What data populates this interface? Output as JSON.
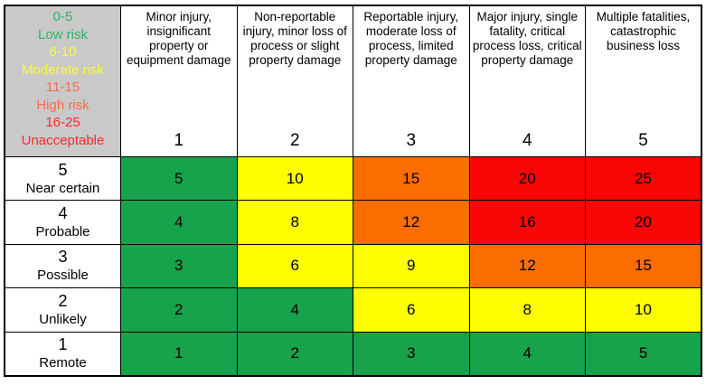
{
  "colors": {
    "low": "#17A24C",
    "moderate": "#FFFF00",
    "high": "#FB6D00",
    "unacceptable": "#FA0505",
    "legend_bg": "#C9C9C9",
    "legend_text_low": "#2EB363",
    "legend_text_moderate": "#FCFC3C",
    "legend_text_high": "#FD6A45",
    "legend_text_unacceptable": "#FB2A24",
    "border": "#000000"
  },
  "legend": {
    "lines": [
      {
        "text": "0-5",
        "color": "low"
      },
      {
        "text": "Low risk",
        "color": "low"
      },
      {
        "text": "6-10",
        "color": "moderate"
      },
      {
        "text": "Moderate risk",
        "color": "moderate"
      },
      {
        "text": "11-15",
        "color": "high"
      },
      {
        "text": "High risk",
        "color": "high"
      },
      {
        "text": "16-25",
        "color": "unacceptable"
      },
      {
        "text": "Unacceptable",
        "color": "unacceptable"
      }
    ]
  },
  "columns": [
    {
      "description": "Minor injury, insignificant property or equipment damage",
      "number": "1"
    },
    {
      "description": "Non-reportable injury, minor loss of process or slight property damage",
      "number": "2"
    },
    {
      "description": "Reportable injury, moderate loss of process, limited property damage",
      "number": "3"
    },
    {
      "description": "Major injury, single fatality, critical process loss, critical property damage",
      "number": "4"
    },
    {
      "description": "Multiple fatalities, catastrophic business loss",
      "number": "5"
    }
  ],
  "rows": [
    {
      "number": "5",
      "label": "Near certain",
      "cells": [
        {
          "value": "5",
          "level": "low"
        },
        {
          "value": "10",
          "level": "moderate"
        },
        {
          "value": "15",
          "level": "high"
        },
        {
          "value": "20",
          "level": "unacceptable"
        },
        {
          "value": "25",
          "level": "unacceptable"
        }
      ]
    },
    {
      "number": "4",
      "label": "Probable",
      "cells": [
        {
          "value": "4",
          "level": "low"
        },
        {
          "value": "8",
          "level": "moderate"
        },
        {
          "value": "12",
          "level": "high"
        },
        {
          "value": "16",
          "level": "unacceptable"
        },
        {
          "value": "20",
          "level": "unacceptable"
        }
      ]
    },
    {
      "number": "3",
      "label": "Possible",
      "cells": [
        {
          "value": "3",
          "level": "low"
        },
        {
          "value": "6",
          "level": "moderate"
        },
        {
          "value": "9",
          "level": "moderate"
        },
        {
          "value": "12",
          "level": "high"
        },
        {
          "value": "15",
          "level": "high"
        }
      ]
    },
    {
      "number": "2",
      "label": "Unlikely",
      "cells": [
        {
          "value": "2",
          "level": "low"
        },
        {
          "value": "4",
          "level": "low"
        },
        {
          "value": "6",
          "level": "moderate"
        },
        {
          "value": "8",
          "level": "moderate"
        },
        {
          "value": "10",
          "level": "moderate"
        }
      ]
    },
    {
      "number": "1",
      "label": "Remote",
      "cells": [
        {
          "value": "1",
          "level": "low"
        },
        {
          "value": "2",
          "level": "low"
        },
        {
          "value": "3",
          "level": "low"
        },
        {
          "value": "4",
          "level": "low"
        },
        {
          "value": "5",
          "level": "low"
        }
      ]
    }
  ],
  "chart_data": {
    "type": "heatmap",
    "x_categories": [
      "1",
      "2",
      "3",
      "4",
      "5"
    ],
    "x_category_descriptions": [
      "Minor injury, insignificant property or equipment damage",
      "Non-reportable injury, minor loss of process or slight property damage",
      "Reportable injury, moderate loss of process, limited property damage",
      "Major injury, single fatality, critical process loss, critical property damage",
      "Multiple fatalities, catastrophic business loss"
    ],
    "y_categories": [
      "5 Near certain",
      "4 Probable",
      "3 Possible",
      "2 Unlikely",
      "1 Remote"
    ],
    "values": [
      [
        5,
        10,
        15,
        20,
        25
      ],
      [
        4,
        8,
        12,
        16,
        20
      ],
      [
        3,
        6,
        9,
        12,
        15
      ],
      [
        2,
        4,
        6,
        8,
        10
      ],
      [
        1,
        2,
        3,
        4,
        5
      ]
    ],
    "levels": [
      [
        "low",
        "moderate",
        "high",
        "unacceptable",
        "unacceptable"
      ],
      [
        "low",
        "moderate",
        "high",
        "unacceptable",
        "unacceptable"
      ],
      [
        "low",
        "moderate",
        "moderate",
        "high",
        "high"
      ],
      [
        "low",
        "low",
        "moderate",
        "moderate",
        "moderate"
      ],
      [
        "low",
        "low",
        "low",
        "low",
        "low"
      ]
    ],
    "legend": [
      {
        "range": "0-5",
        "label": "Low risk",
        "level": "low"
      },
      {
        "range": "6-10",
        "label": "Moderate risk",
        "level": "moderate"
      },
      {
        "range": "11-15",
        "label": "High risk",
        "level": "high"
      },
      {
        "range": "16-25",
        "label": "Unacceptable",
        "level": "unacceptable"
      }
    ],
    "legend_position": "top-left",
    "grid": true
  }
}
